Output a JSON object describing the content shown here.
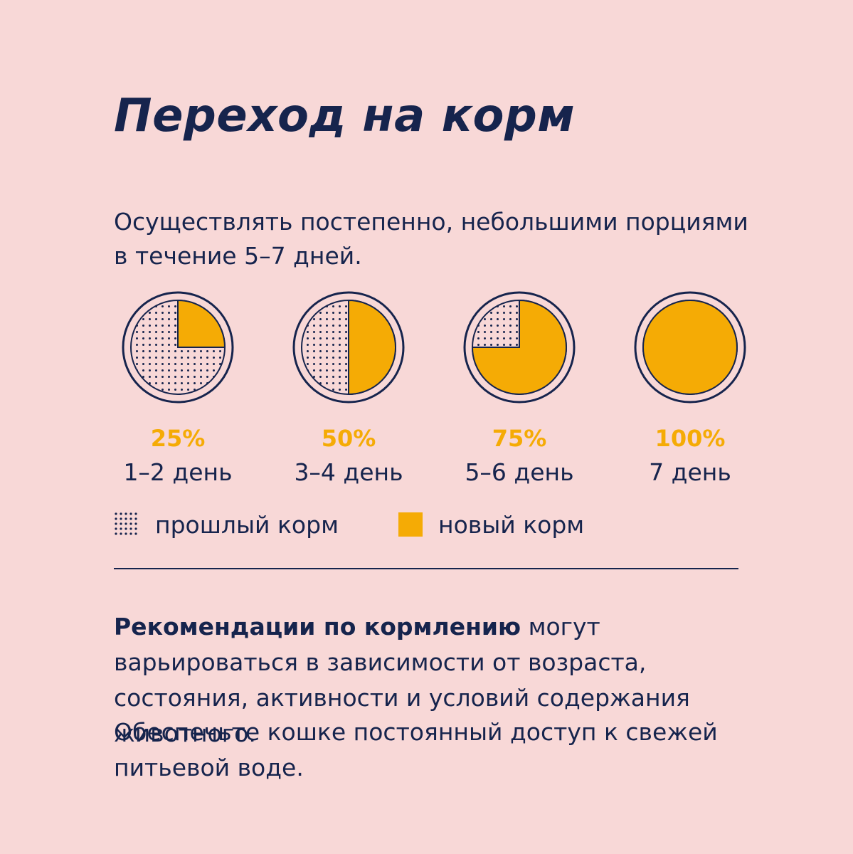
{
  "title": "Переход на корм",
  "intro": "Осуществлять постепенно, небольшими порциями в течение 5–7 дней.",
  "colors": {
    "background": "#f8d8d7",
    "text": "#16244d",
    "new_food": "#f5ab05"
  },
  "stages": [
    {
      "percent_label": "25%",
      "new_food_fraction": 0.25,
      "days_label": "1–2 день"
    },
    {
      "percent_label": "50%",
      "new_food_fraction": 0.5,
      "days_label": "3–4 день"
    },
    {
      "percent_label": "75%",
      "new_food_fraction": 0.75,
      "days_label": "5–6 день"
    },
    {
      "percent_label": "100%",
      "new_food_fraction": 1.0,
      "days_label": "7 день"
    }
  ],
  "legend": {
    "old_food": "прошлый корм",
    "new_food": "новый корм"
  },
  "recommendation": {
    "bold": "Рекомендации по кормлению",
    "rest": " могут варьироваться в зависимости от возраста, состояния, активности и условий содержания животного."
  },
  "water_note": "Обеспечьте кошке постоянный доступ к свежей питьевой воде."
}
